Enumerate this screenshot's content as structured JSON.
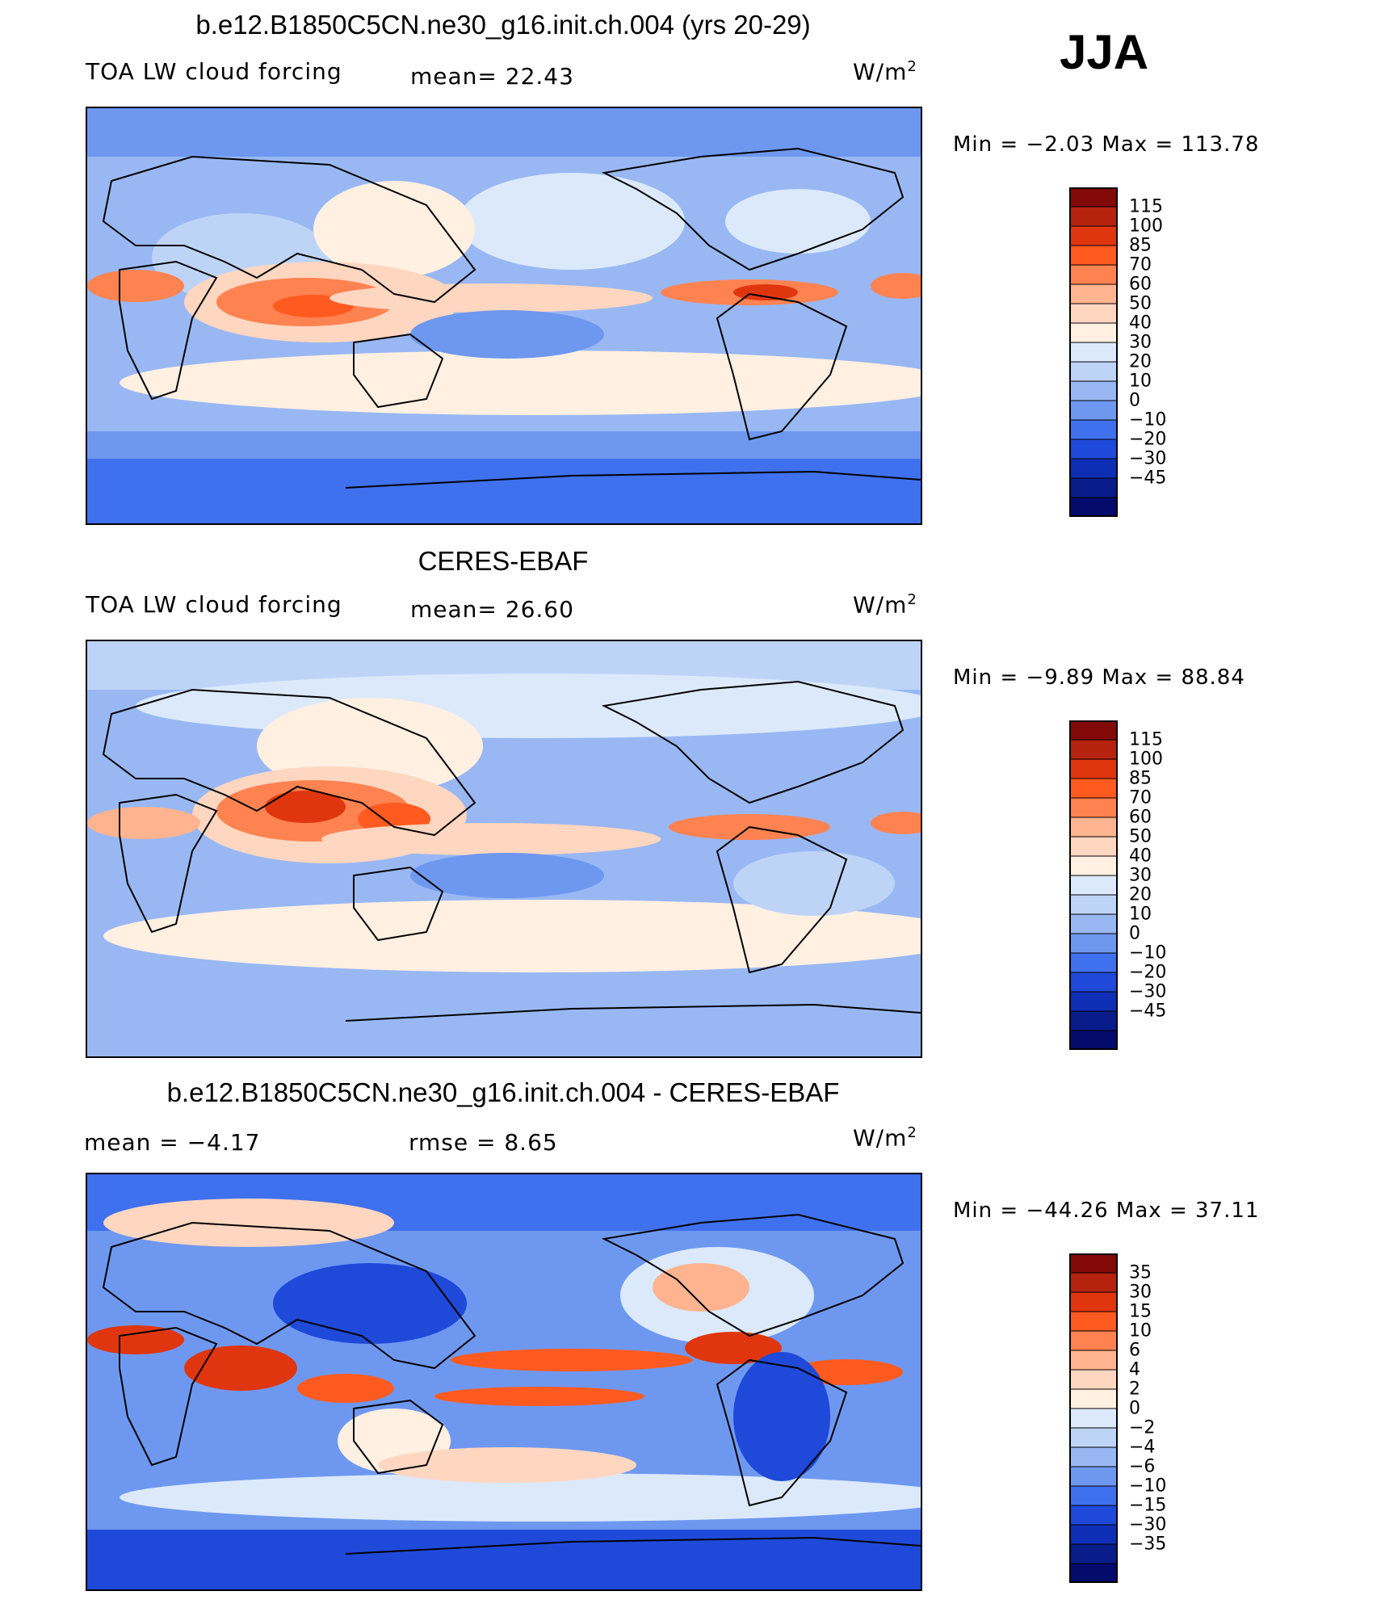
{
  "season": "JJA",
  "panels": [
    {
      "title": "b.e12.B1850C5CN.ne30_g16.init.ch.004 (yrs 20-29)",
      "variable": "TOA LW cloud forcing",
      "mean_text": "mean=   22.43",
      "unit_base": "W/m",
      "unit_exp": "2",
      "minmax": "Min  =   −2.03  Max  =  113.78",
      "colorbar_labels": [
        "115",
        "100",
        "85",
        "70",
        "60",
        "50",
        "40",
        "30",
        "20",
        "10",
        "0",
        "−10",
        "−20",
        "−30",
        "−45"
      ],
      "colors": [
        "#840a0a",
        "#b5230f",
        "#e0360f",
        "#ff5a1f",
        "#ff8251",
        "#ffb38f",
        "#ffd6c0",
        "#fff0e2",
        "#dbe9fb",
        "#bed4f7",
        "#99b8f3",
        "#6e98f0",
        "#3f70ee",
        "#1f49d9",
        "#0e2fb5",
        "#081c8a",
        "#030c6b"
      ],
      "mean_value": 22.43,
      "min": -2.03,
      "max": 113.78
    },
    {
      "title": "CERES-EBAF",
      "variable": "TOA LW cloud forcing",
      "mean_text": "mean=   26.60",
      "unit_base": "W/m",
      "unit_exp": "2",
      "minmax": "Min  =   −9.89  Max  =   88.84",
      "colorbar_labels": [
        "115",
        "100",
        "85",
        "70",
        "60",
        "50",
        "40",
        "30",
        "20",
        "10",
        "0",
        "−10",
        "−20",
        "−30",
        "−45"
      ],
      "colors": [
        "#840a0a",
        "#b5230f",
        "#e0360f",
        "#ff5a1f",
        "#ff8251",
        "#ffb38f",
        "#ffd6c0",
        "#fff0e2",
        "#dbe9fb",
        "#bed4f7",
        "#99b8f3",
        "#6e98f0",
        "#3f70ee",
        "#1f49d9",
        "#0e2fb5",
        "#081c8a",
        "#030c6b"
      ],
      "mean_value": 26.6,
      "min": -9.89,
      "max": 88.84
    },
    {
      "title": "b.e12.B1850C5CN.ne30_g16.init.ch.004 - CERES-EBAF",
      "variable": "",
      "mean_text": "mean  =   −4.17",
      "rmse_text": "rmse  =    8.65",
      "unit_base": "W/m",
      "unit_exp": "2",
      "minmax": "Min  = −44.26  Max  =   37.11",
      "colorbar_labels": [
        "35",
        "30",
        "15",
        "10",
        "6",
        "4",
        "2",
        "0",
        "−2",
        "−4",
        "−6",
        "−10",
        "−15",
        "−30",
        "−35"
      ],
      "colors": [
        "#840a0a",
        "#b5230f",
        "#e0360f",
        "#ff5a1f",
        "#ff8251",
        "#ffb38f",
        "#ffd6c0",
        "#fff0e2",
        "#dbe9fb",
        "#bed4f7",
        "#99b8f3",
        "#6e98f0",
        "#3f70ee",
        "#1f49d9",
        "#0e2fb5",
        "#081c8a",
        "#030c6b"
      ],
      "mean_value": -4.17,
      "rmse_value": 8.65,
      "min": -44.26,
      "max": 37.11
    }
  ]
}
